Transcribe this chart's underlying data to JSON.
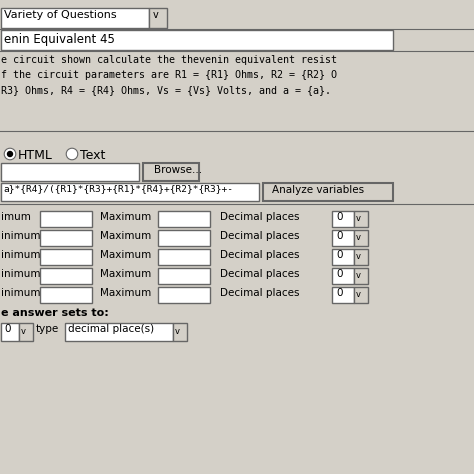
{
  "bg_color": "#d4d0c8",
  "bg_light": "#e0ddd6",
  "white": "#ffffff",
  "dark_text": "#000000",
  "border_color": "#999999",
  "border_dark": "#666666",
  "title": "Variety of Questions",
  "dropdown_arrow": "v",
  "question_name": "enin Equivalent 45",
  "question_text_line1": "e circuit shown calculate the thevenin equivalent resist",
  "question_text_line2": "f the circuit parameters are R1 = {R1} Ohms, R2 = {R2} O",
  "question_text_line3": "R3} Ohms, R4 = {R4} Ohms, Vs = {Vs} Volts, and a = {a}.",
  "formula_text": "a}*{R4}/({R1}*{R3}+{R1}*{R4}+{R2}*{R3}+-",
  "row_labels_left": [
    "imum",
    "inimum",
    "inimum",
    "inimum",
    "inimum"
  ],
  "answer_label": "e answer sets to:",
  "fig_width": 4.74,
  "fig_height": 4.74,
  "dpi": 100
}
